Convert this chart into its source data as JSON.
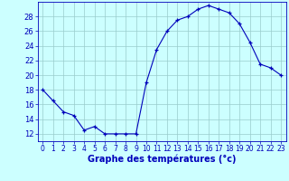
{
  "hours": [
    0,
    1,
    2,
    3,
    4,
    5,
    6,
    7,
    8,
    9,
    10,
    11,
    12,
    13,
    14,
    15,
    16,
    17,
    18,
    19,
    20,
    21,
    22,
    23
  ],
  "temps": [
    18,
    16.5,
    15,
    14.5,
    12.5,
    13,
    12,
    12,
    12,
    12,
    19,
    23.5,
    26,
    27.5,
    28,
    29,
    29.5,
    29,
    28.5,
    27,
    24.5,
    21.5,
    21,
    20
  ],
  "line_color": "#0000bb",
  "bg_color": "#ccffff",
  "grid_color": "#99cccc",
  "xlabel": "Graphe des températures (°c)",
  "xlabel_color": "#0000bb",
  "tick_color": "#0000bb",
  "ylim": [
    11,
    30
  ],
  "xlim": [
    -0.5,
    23.5
  ],
  "yticks": [
    12,
    14,
    16,
    18,
    20,
    22,
    24,
    26,
    28
  ],
  "xticks": [
    0,
    1,
    2,
    3,
    4,
    5,
    6,
    7,
    8,
    9,
    10,
    11,
    12,
    13,
    14,
    15,
    16,
    17,
    18,
    19,
    20,
    21,
    22,
    23
  ],
  "xtick_labels": [
    "0",
    "1",
    "2",
    "3",
    "4",
    "5",
    "6",
    "7",
    "8",
    "9",
    "10",
    "11",
    "12",
    "13",
    "14",
    "15",
    "16",
    "17",
    "18",
    "19",
    "20",
    "21",
    "22",
    "23"
  ]
}
